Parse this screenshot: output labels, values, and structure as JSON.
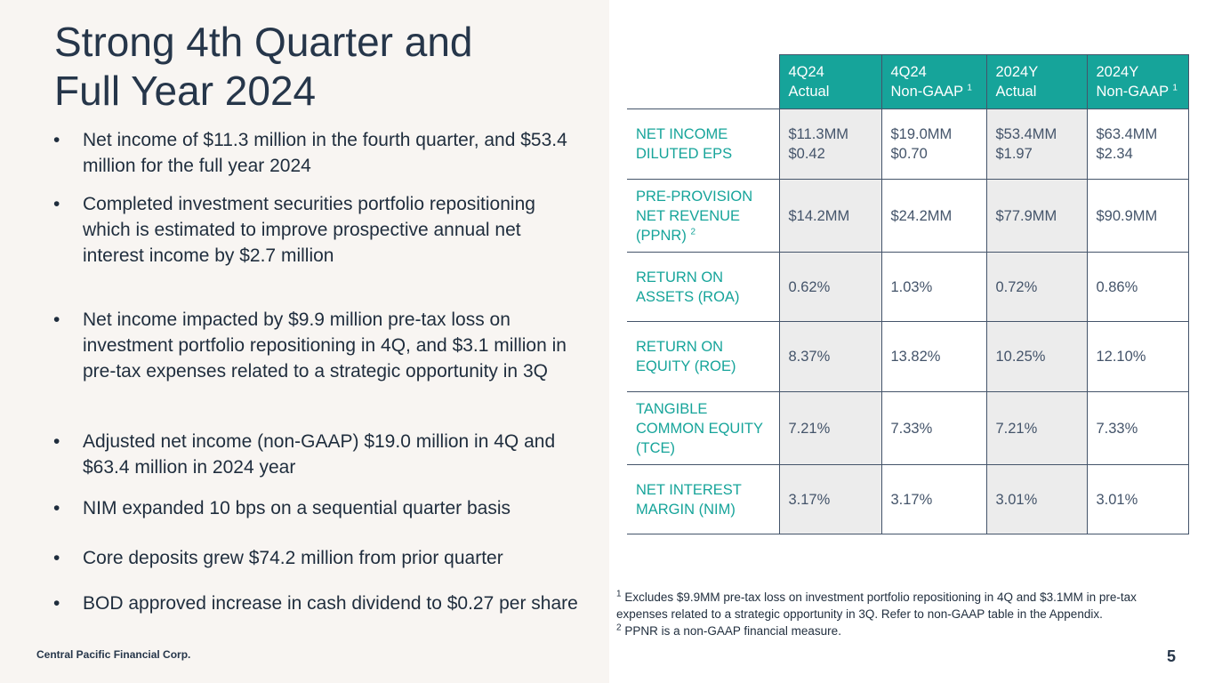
{
  "title": {
    "line1": "Strong 4th Quarter and",
    "line2": "Full Year 2024"
  },
  "bullets": [
    "Net income of $11.3 million in the fourth quarter, and $53.4 million for the full year 2024",
    "Completed investment securities portfolio repositioning which is estimated to improve prospective annual net interest income by $2.7 million",
    "Net income impacted by $9.9 million pre-tax loss on investment portfolio repositioning in 4Q, and $3.1 million in pre-tax expenses related to a strategic opportunity in 3Q",
    "Adjusted net income (non-GAAP) $19.0 million in 4Q and $63.4 million in 2024 year",
    "NIM expanded 10 bps on a sequential quarter basis",
    "Core deposits grew $74.2 million from prior quarter",
    "BOD approved increase in cash dividend to $0.27 per share"
  ],
  "table": {
    "headers": [
      {
        "line1": "4Q24",
        "line2": "Actual",
        "sup": ""
      },
      {
        "line1": "4Q24",
        "line2": "Non-GAAP",
        "sup": "1"
      },
      {
        "line1": "2024Y",
        "line2": "Actual",
        "sup": ""
      },
      {
        "line1": "2024Y",
        "line2": "Non-GAAP",
        "sup": "1"
      }
    ],
    "rows": [
      {
        "label_lines": [
          "NET INCOME",
          "DILUTED EPS"
        ],
        "sup": "",
        "cells": [
          [
            "$11.3MM",
            "$0.42"
          ],
          [
            "$19.0MM",
            "$0.70"
          ],
          [
            "$53.4MM",
            "$1.97"
          ],
          [
            "$63.4MM",
            "$2.34"
          ]
        ]
      },
      {
        "label_lines": [
          "PRE-PROVISION",
          "NET REVENUE",
          "(PPNR)"
        ],
        "sup": "2",
        "cells": [
          [
            "$14.2MM"
          ],
          [
            "$24.2MM"
          ],
          [
            "$77.9MM"
          ],
          [
            "$90.9MM"
          ]
        ]
      },
      {
        "label_lines": [
          "RETURN ON",
          "ASSETS (ROA)"
        ],
        "sup": "",
        "cells": [
          [
            "0.62%"
          ],
          [
            "1.03%"
          ],
          [
            "0.72%"
          ],
          [
            "0.86%"
          ]
        ]
      },
      {
        "label_lines": [
          "RETURN ON",
          "EQUITY (ROE)"
        ],
        "sup": "",
        "cells": [
          [
            "8.37%"
          ],
          [
            "13.82%"
          ],
          [
            "10.25%"
          ],
          [
            "12.10%"
          ]
        ]
      },
      {
        "label_lines": [
          "TANGIBLE",
          "COMMON EQUITY",
          "(TCE)"
        ],
        "sup": "",
        "cells": [
          [
            "7.21%"
          ],
          [
            "7.33%"
          ],
          [
            "7.21%"
          ],
          [
            "7.33%"
          ]
        ]
      },
      {
        "label_lines": [
          "NET INTEREST",
          "MARGIN (NIM)"
        ],
        "sup": "",
        "cells": [
          [
            "3.17%"
          ],
          [
            "3.17%"
          ],
          [
            "3.01%"
          ],
          [
            "3.01%"
          ]
        ]
      }
    ]
  },
  "footnotes": {
    "note1_marker": "1",
    "note1_text": "Excludes $9.9MM pre-tax loss on investment portfolio repositioning in 4Q and $3.1MM in pre-tax expenses related to a strategic opportunity in 3Q. Refer to non-GAAP table in the Appendix.",
    "note2_marker": "2",
    "note2_text": "PPNR is a non-GAAP financial measure."
  },
  "footer": {
    "company": "Central Pacific Financial Corp.",
    "page": "5"
  },
  "colors": {
    "accent": "#16a49a",
    "title": "#26364a",
    "panel": "#f8f5f2"
  }
}
